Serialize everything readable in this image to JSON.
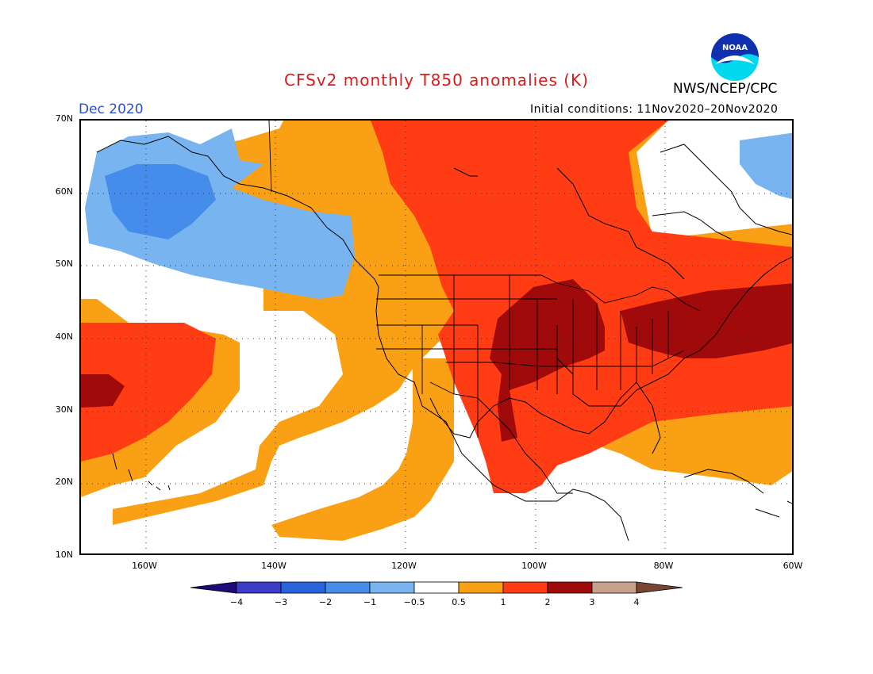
{
  "title": "CFSv2 monthly T850 anomalies (K)",
  "month": "Dec 2020",
  "initial_conditions": "Initial conditions: 11Nov2020–20Nov2020",
  "agency": "NWS/NCEP/CPC",
  "logo_text": "NOAA",
  "map": {
    "lat_range": [
      10,
      70
    ],
    "lon_range": [
      -170,
      -60
    ],
    "lat_labels": [
      "70N",
      "60N",
      "50N",
      "40N",
      "30N",
      "20N",
      "10N"
    ],
    "lon_labels": [
      "160W",
      "140W",
      "120W",
      "100W",
      "80W",
      "60W"
    ],
    "gridlines": "dotted",
    "features": [
      "coastlines",
      "country-borders",
      "us-state-borders"
    ]
  },
  "colorbar": {
    "labels": [
      "−4",
      "−3",
      "−2",
      "−1",
      "−0.5",
      "0.5",
      "1",
      "2",
      "3",
      "4"
    ],
    "colors": {
      "lt_-4": "#1e0a78",
      "-4_-3": "#3c3cc8",
      "-3_-2": "#2864dc",
      "-2_-1": "#468ceb",
      "-1_-0.5": "#78b4f0",
      "-0.5_0.5": "#ffffff",
      "0.5_1": "#faa014",
      "1_2": "#ff3c14",
      "2_3": "#a00a0a",
      "3_4": "#c8a08c",
      "gt_4": "#784632"
    }
  },
  "anomaly_regions": [
    {
      "name": "gulf-of-alaska-cool",
      "level": "-1_-0.5"
    },
    {
      "name": "alaska-cool-core",
      "level": "-2_-1"
    },
    {
      "name": "greenland-cool",
      "level": "-1_-0.5"
    },
    {
      "name": "canada-us-warm",
      "level": "1_2"
    },
    {
      "name": "central-us-very-warm",
      "level": "2_3"
    },
    {
      "name": "northeast-us-very-warm",
      "level": "2_3"
    },
    {
      "name": "pacific-warm",
      "level": "1_2"
    },
    {
      "name": "pacific-very-warm",
      "level": "2_3"
    },
    {
      "name": "mexico-coast-mild",
      "level": "0.5_1"
    }
  ]
}
